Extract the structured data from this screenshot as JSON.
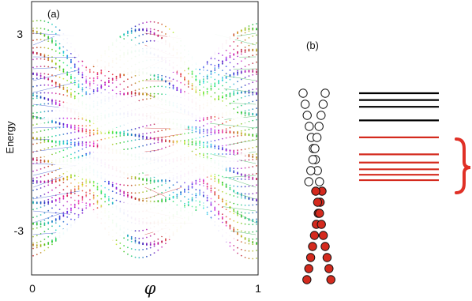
{
  "panel_a": {
    "label": "(a)",
    "ylabel": "Energy",
    "xlabel": "φ",
    "xticks": [
      "0",
      "1"
    ],
    "yticks": [
      "3",
      "-3"
    ]
  },
  "panel_b": {
    "label": "(b)"
  },
  "chart_data": [
    {
      "type": "scatter",
      "xlabel": "φ",
      "ylabel": "Energy",
      "xlim": [
        0,
        1
      ],
      "ylim": [
        -3.4,
        3.4
      ],
      "x_ticks": [
        0,
        1
      ],
      "y_ticks": [
        3,
        -3
      ],
      "grid": false
    }
  ],
  "diagram": {
    "circle_chain_open_count": 9,
    "circle_chain_filled_count": 9,
    "black_levels": [
      0,
      1,
      2,
      4
    ],
    "red_levels": [
      6.5,
      9,
      10.2,
      11.2,
      12,
      12.8
    ],
    "colors": {
      "filled": "#d42a1e",
      "open": "#ffffff",
      "black_line": "#000000",
      "red_line": "#d42a1e",
      "brace": "#e03026"
    }
  }
}
